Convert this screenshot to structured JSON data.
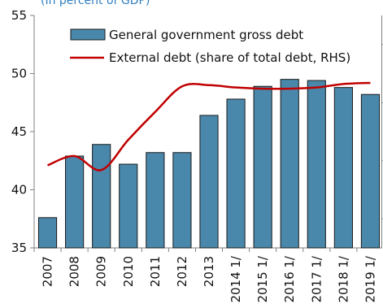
{
  "chart_data": {
    "type": "bar",
    "subtitle": "(In percent of GDP)",
    "categories": [
      "2007",
      "2008",
      "2009",
      "2010",
      "2011",
      "2012",
      "2013",
      "2014 1/",
      "2015 1/",
      "2016 1/",
      "2017 1/",
      "2018 1/",
      "2019 1/"
    ],
    "series": [
      {
        "name": "General government gross debt",
        "type": "bar",
        "axis": "left",
        "color": "#4a88ab",
        "values": [
          37.6,
          42.9,
          43.9,
          42.2,
          43.2,
          43.2,
          46.4,
          47.8,
          48.9,
          49.5,
          49.4,
          48.8,
          48.2
        ]
      },
      {
        "name": "External debt (share of total debt, RHS)",
        "type": "line",
        "axis": "right",
        "color": "#c00000",
        "values": [
          42.1,
          42.9,
          41.7,
          44.3,
          46.7,
          48.9,
          49.0,
          48.8,
          48.7,
          48.7,
          48.8,
          49.1,
          49.2
        ]
      }
    ],
    "yaxis_left": {
      "ticks": [
        35,
        40,
        45,
        50,
        55
      ],
      "ylim": [
        35,
        55
      ]
    },
    "yaxis_right": {
      "ylim": [
        35,
        55
      ],
      "labels_visible": false
    },
    "grid": false,
    "legend": "top"
  }
}
